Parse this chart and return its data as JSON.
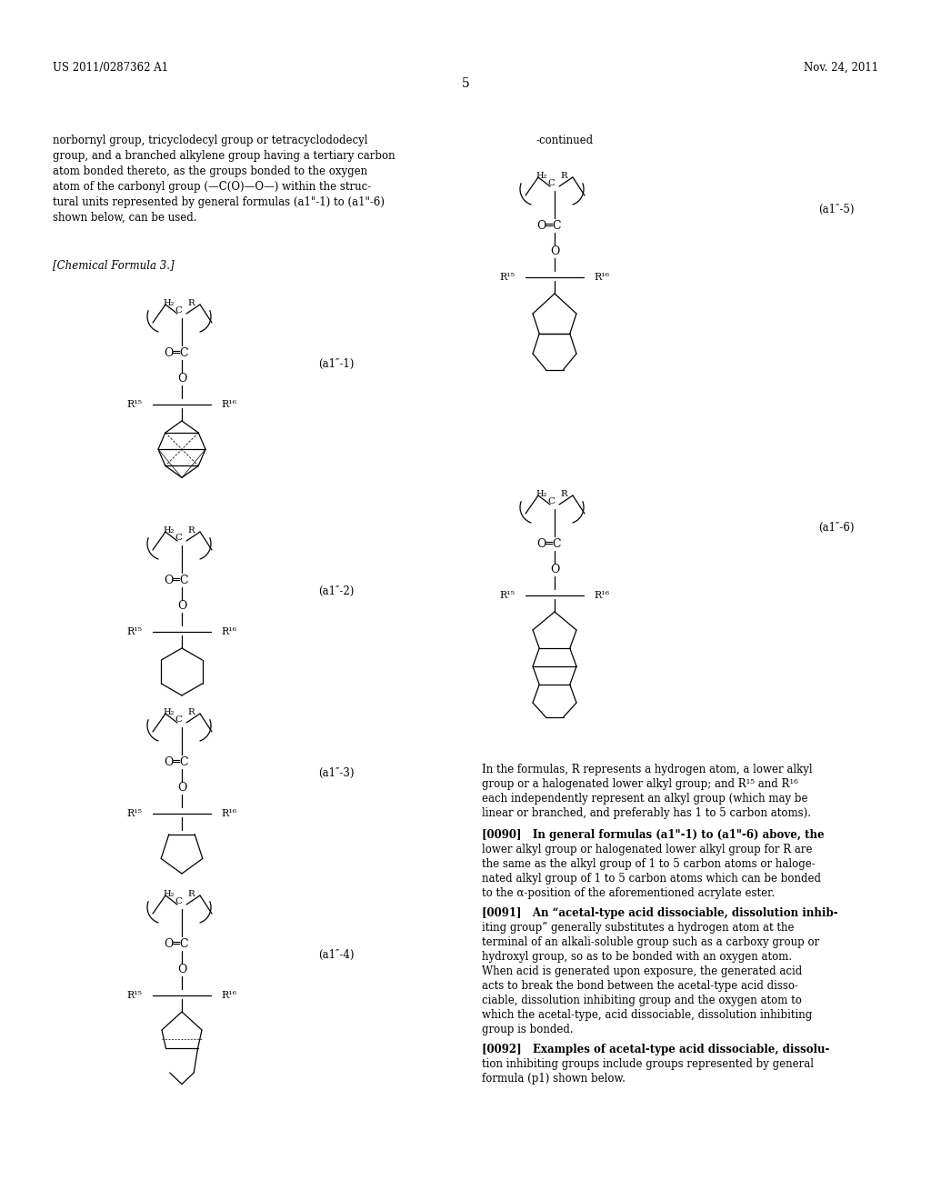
{
  "page_number": "5",
  "header_left": "US 2011/0287362 A1",
  "header_right": "Nov. 24, 2011",
  "continued_label": "-continued",
  "chemical_formula_label": "[Chemical Formula 3.]",
  "background_color": "#ffffff",
  "text_color": "#000000",
  "body_text": [
    "norbornyl group, tricyclodecyl group or tetracyclododecyl",
    "group, and a branched alkylene group having a tertiary carbon",
    "atom bonded thereto, as the groups bonded to the oxygen",
    "atom of the carbonyl group (—C(O)—O—) within the struc-",
    "tural units represented by general formulas (a1\"-1) to (a1\"-6)",
    "shown below, can be used."
  ],
  "note_lines": [
    "In the formulas, R represents a hydrogen atom, a lower alkyl",
    "group or a halogenated lower alkyl group; and R¹⁵ and R¹⁶",
    "each independently represent an alkyl group (which may be",
    "linear or branched, and preferably has 1 to 5 carbon atoms)."
  ],
  "p0090_lines": [
    "[0090]   In general formulas (a1\"-1) to (a1\"-6) above, the",
    "lower alkyl group or halogenated lower alkyl group for R are",
    "the same as the alkyl group of 1 to 5 carbon atoms or haloge-",
    "nated alkyl group of 1 to 5 carbon atoms which can be bonded",
    "to the α-position of the aforementioned acrylate ester."
  ],
  "p0091_lines": [
    "[0091]   An “acetal-type acid dissociable, dissolution inhib-",
    "iting group” generally substitutes a hydrogen atom at the",
    "terminal of an alkali-soluble group such as a carboxy group or",
    "hydroxyl group, so as to be bonded with an oxygen atom.",
    "When acid is generated upon exposure, the generated acid",
    "acts to break the bond between the acetal-type acid disso-",
    "ciable, dissolution inhibiting group and the oxygen atom to",
    "which the acetal-type, acid dissociable, dissolution inhibiting",
    "group is bonded."
  ],
  "p0092_lines": [
    "[0092]   Examples of acetal-type acid dissociable, dissolu-",
    "tion inhibiting groups include groups represented by general",
    "formula (p1) shown below."
  ]
}
